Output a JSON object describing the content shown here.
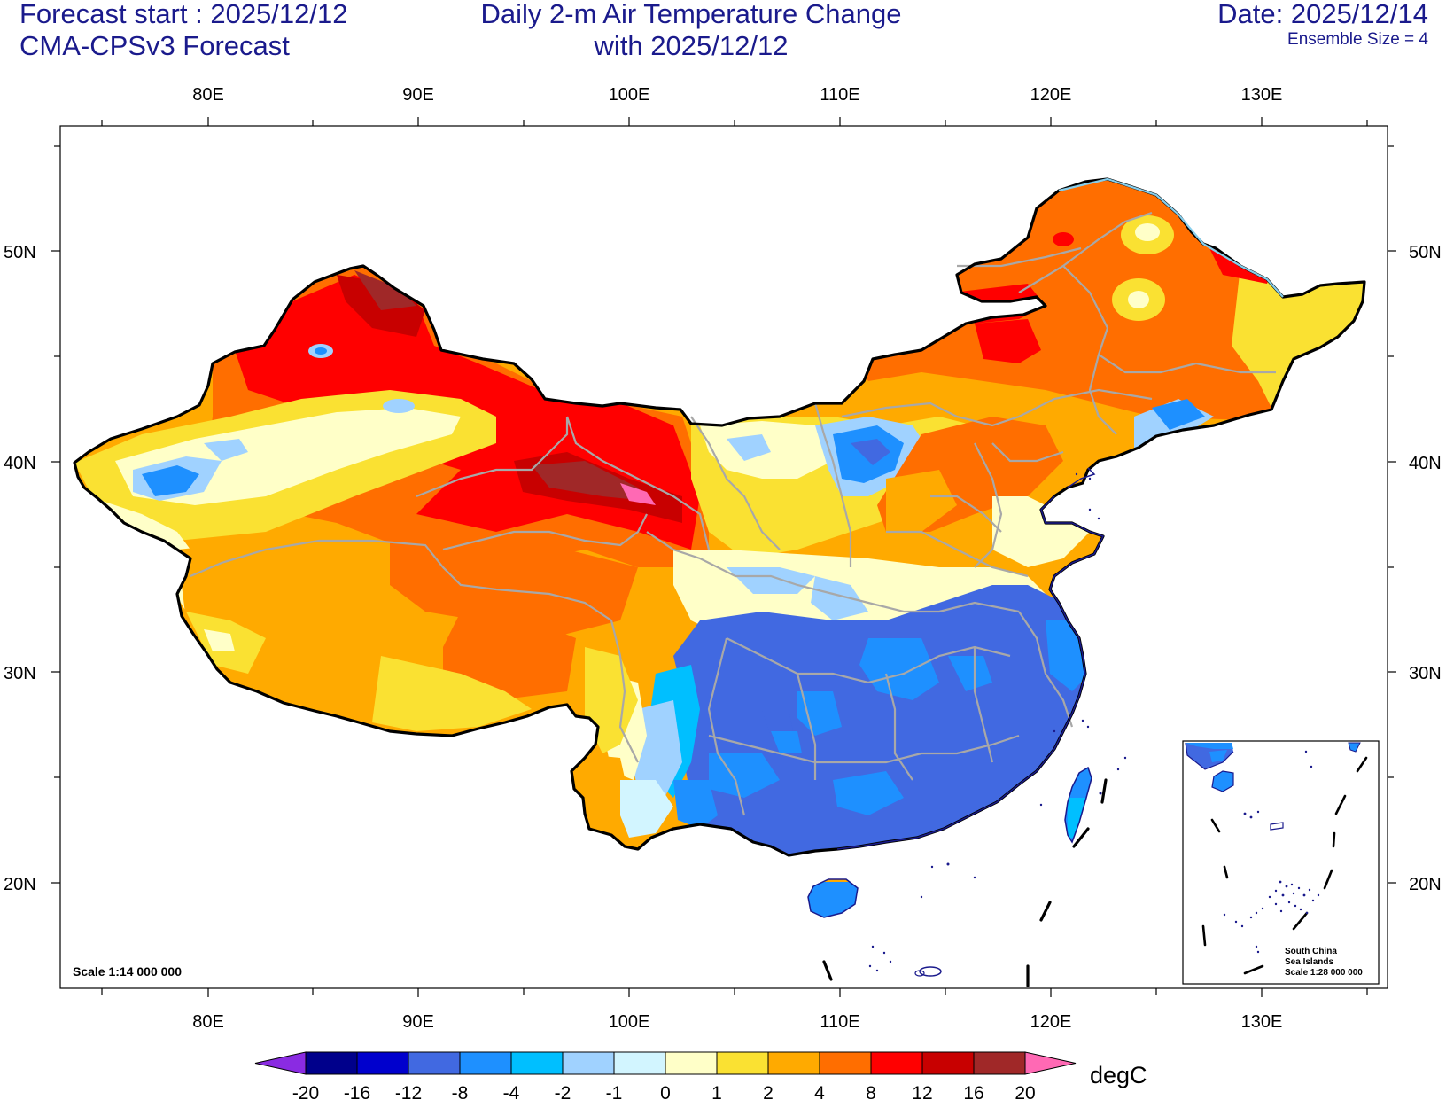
{
  "header": {
    "forecast_start": "Forecast start : 2025/12/12",
    "model": "CMA-CPSv3 Forecast",
    "title_line1": "Daily 2-m Air Temperature Change",
    "title_line2": "with 2025/12/12",
    "date": "Date: 2025/12/14",
    "ensemble": "Ensemble Size = 4"
  },
  "axes": {
    "lon_labels": [
      "80E",
      "90E",
      "100E",
      "110E",
      "120E",
      "130E"
    ],
    "lat_labels": [
      "50N",
      "40N",
      "30N",
      "20N"
    ]
  },
  "scale_label": "Scale 1:14 000 000",
  "inset": {
    "line1": "South China",
    "line2": "Sea Islands",
    "line3": "Scale 1:28 000 000"
  },
  "colorbar": {
    "unit": "degC",
    "labels": [
      "-20",
      "-16",
      "-12",
      "-8",
      "-4",
      "-2",
      "-1",
      "0",
      "1",
      "2",
      "4",
      "8",
      "12",
      "16",
      "20"
    ],
    "colors": [
      "#8a2be2",
      "#00008b",
      "#0000cd",
      "#4169e1",
      "#1e90ff",
      "#00bfff",
      "#a0d2ff",
      "#d2f5ff",
      "#ffffc8",
      "#fae132",
      "#ffaa00",
      "#ff6e00",
      "#ff0000",
      "#c80000",
      "#a02828",
      "#ff69b4"
    ]
  },
  "icons": {
    "frame": "map-frame",
    "inset": "south-china-sea-inset"
  }
}
